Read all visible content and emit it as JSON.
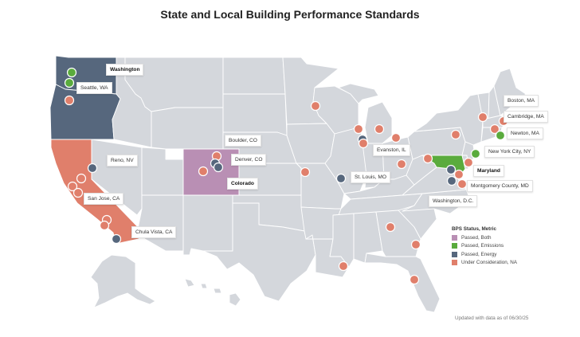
{
  "title": "State and Local Building Performance Standards",
  "colors": {
    "passed_both": "#b98fb4",
    "passed_emissions": "#5aab3d",
    "passed_energy": "#56677d",
    "under_consideration": "#e07f6b",
    "state_default": "#d4d7dc",
    "state_border": "#ffffff"
  },
  "legend": {
    "title": "BPS Status, Metric",
    "items": [
      {
        "label": "Passed, Both",
        "color": "#b98fb4"
      },
      {
        "label": "Passed, Emissions",
        "color": "#5aab3d"
      },
      {
        "label": "Passed, Energy",
        "color": "#56677d"
      },
      {
        "label": "Under Consideration, NA",
        "color": "#e07f6b"
      }
    ]
  },
  "labels": {
    "washington": "Washington",
    "seattle": "Seattle, WA",
    "reno": "Reno, NV",
    "san_jose": "San Jose, CA",
    "chula_vista": "Chula Vista, CA",
    "boulder": "Boulder, CO",
    "denver": "Denver, CO",
    "colorado": "Colorado",
    "evanston": "Evanston, IL",
    "st_louis": "St. Louis, MO",
    "boston": "Boston, MA",
    "cambridge": "Cambridge, MA",
    "newton": "Newton, MA",
    "nyc": "New York City, NY",
    "maryland": "Maryland",
    "montgomery": "Montgomery County, MD",
    "washington_dc": "Washington, D.C."
  },
  "footnote": "Updated with data as of 06/30/25"
}
